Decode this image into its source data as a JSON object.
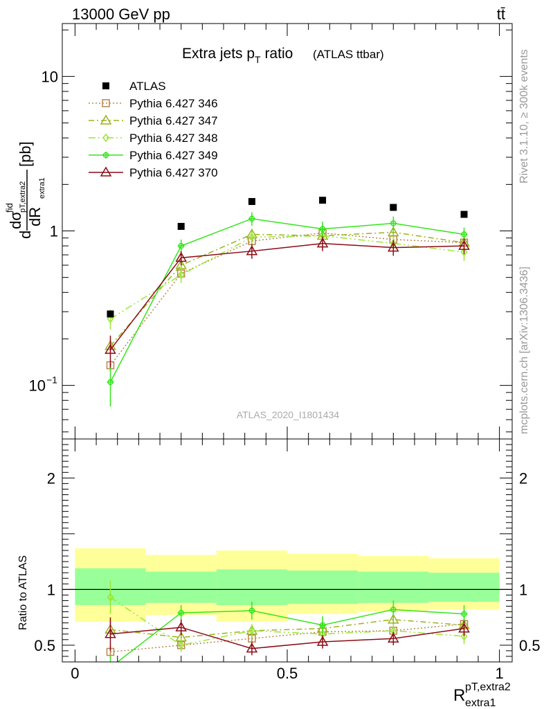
{
  "header": {
    "energy_label": "13000 GeV pp",
    "process_label": "tt̄"
  },
  "side_labels": {
    "rivet": "Rivet 3.1.10, ≥ 300k events",
    "mcplots": "mcplots.cern.ch [arXiv:1306.3436]"
  },
  "analysis_id": "ATLAS_2020_I1801434",
  "colors": {
    "atlas": "#000000",
    "p346": "#b8864b",
    "p347": "#99b31a",
    "p348": "#99e633",
    "p349": "#33e61a",
    "p370": "#8b0a14",
    "band_outer": "#ffff99",
    "band_inner": "#99ff99"
  },
  "chart_data": [
    {
      "type": "scatter",
      "title": "Extra jets p",
      "title_sub": "T",
      "title_suffix": " ratio",
      "title_note": "(ATLAS ttbar)",
      "ylabel": "[pb]",
      "yscale": "log",
      "ylim": [
        0.045,
        22
      ],
      "xlim": [
        -0.03,
        1.03
      ],
      "y_tick_labels": [
        "10",
        "1"
      ],
      "x": [
        0.0833,
        0.25,
        0.4167,
        0.5833,
        0.75,
        0.9167
      ],
      "legend_position": "top-left",
      "series": [
        {
          "name": "ATLAS",
          "values": [
            0.29,
            1.07,
            1.55,
            1.58,
            1.42,
            1.28
          ],
          "errors": [
            0,
            0,
            0,
            0,
            0,
            0
          ]
        },
        {
          "name": "Pythia 6.427 346",
          "values": [
            0.135,
            0.53,
            0.86,
            0.97,
            0.88,
            0.84
          ],
          "errors": [
            0.01,
            0.04,
            0.05,
            0.05,
            0.05,
            0.05
          ]
        },
        {
          "name": "Pythia 6.427 347",
          "values": [
            0.18,
            0.6,
            0.95,
            0.93,
            0.98,
            0.84
          ],
          "errors": [
            0.02,
            0.05,
            0.07,
            0.07,
            0.07,
            0.08
          ]
        },
        {
          "name": "Pythia 6.427 348",
          "values": [
            0.27,
            0.52,
            0.91,
            0.93,
            0.83,
            0.73
          ],
          "errors": [
            0.04,
            0.06,
            0.09,
            0.09,
            0.09,
            0.09
          ]
        },
        {
          "name": "Pythia 6.427 349",
          "values": [
            0.105,
            0.8,
            1.2,
            1.03,
            1.12,
            0.95
          ],
          "errors": [
            0.032,
            0.08,
            0.12,
            0.12,
            0.12,
            0.1
          ]
        },
        {
          "name": "Pythia 6.427 370",
          "values": [
            0.17,
            0.67,
            0.74,
            0.83,
            0.78,
            0.8
          ],
          "errors": [
            0.04,
            0.07,
            0.08,
            0.09,
            0.09,
            0.09
          ]
        }
      ]
    },
    {
      "type": "scatter",
      "ylabel": "Ratio to ATLAS",
      "ylim": [
        0.35,
        2.35
      ],
      "xlim": [
        -0.03,
        1.03
      ],
      "x_tick_labels": [
        "0",
        "0.5",
        "1"
      ],
      "y_tick_labels": [
        "2",
        "1",
        "0.5"
      ],
      "xlabel": "R",
      "xlabel_sup": "pT,extra2",
      "xlabel_sub": "extra1",
      "x": [
        0.0833,
        0.25,
        0.4167,
        0.5833,
        0.75,
        0.9167
      ],
      "bands": {
        "edges": [
          0,
          0.1667,
          0.3333,
          0.5,
          0.6667,
          0.8333,
          1.0
        ],
        "outer": [
          [
            0.71,
            1.37
          ],
          [
            0.77,
            1.31
          ],
          [
            0.71,
            1.35
          ],
          [
            0.78,
            1.32
          ],
          [
            0.8,
            1.3
          ],
          [
            0.82,
            1.28
          ]
        ],
        "inner": [
          [
            0.86,
            1.19
          ],
          [
            0.88,
            1.16
          ],
          [
            0.86,
            1.18
          ],
          [
            0.87,
            1.17
          ],
          [
            0.88,
            1.16
          ],
          [
            0.89,
            1.15
          ]
        ]
      },
      "series": [
        {
          "name": "Pythia 6.427 346",
          "values": [
            0.44,
            0.5,
            0.56,
            0.62,
            0.63,
            0.69
          ],
          "errors": [
            0.06,
            0.04,
            0.04,
            0.04,
            0.04,
            0.04
          ]
        },
        {
          "name": "Pythia 6.427 347",
          "values": [
            0.64,
            0.57,
            0.63,
            0.65,
            0.73,
            0.68
          ],
          "errors": [
            0.08,
            0.05,
            0.05,
            0.05,
            0.05,
            0.06
          ]
        },
        {
          "name": "Pythia 6.427 348",
          "values": [
            0.93,
            0.5,
            0.63,
            0.6,
            0.63,
            0.58
          ],
          "errors": [
            0.15,
            0.06,
            0.06,
            0.06,
            0.06,
            0.07
          ]
        },
        {
          "name": "Pythia 6.427 349",
          "values": [
            0.3,
            0.79,
            0.81,
            0.68,
            0.82,
            0.78
          ],
          "errors": [
            0.1,
            0.07,
            0.08,
            0.08,
            0.08,
            0.08
          ]
        },
        {
          "name": "Pythia 6.427 370",
          "values": [
            0.6,
            0.66,
            0.47,
            0.53,
            0.56,
            0.65
          ],
          "errors": [
            0.15,
            0.07,
            0.06,
            0.06,
            0.06,
            0.07
          ]
        }
      ]
    }
  ]
}
